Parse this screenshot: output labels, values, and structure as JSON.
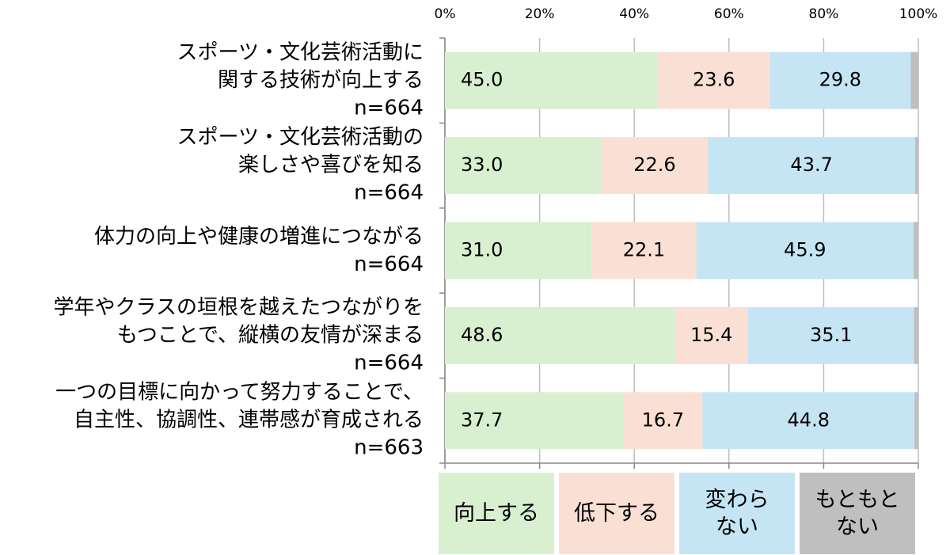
{
  "chart_data": {
    "type": "bar",
    "orientation": "horizontal",
    "stacked": true,
    "categories": [
      "スポーツ・文化芸術活動に\n関する技術が向上する\nn=664",
      "スポーツ・文化芸術活動の\n楽しさや喜びを知る\nn=664",
      "体力の向上や健康の増進につながる\nn=664",
      "学年やクラスの垣根を越えたつながりを\nもつことで、縦横の友情が深まる\nn=664",
      "一つの目標に向かって努力することで、\n自主性、協調性、連帯感が育成される\nn=663"
    ],
    "series": [
      {
        "name": "向上する",
        "color": "#d9f0d0",
        "values": [
          45.0,
          33.0,
          31.0,
          48.6,
          37.7
        ],
        "value_labels": [
          "45.0",
          "33.0",
          "31.0",
          "48.6",
          "37.7"
        ]
      },
      {
        "name": "低下する",
        "color": "#fae0d4",
        "values": [
          23.6,
          22.6,
          22.1,
          15.4,
          16.7
        ]
      },
      {
        "name": "変わら\nない",
        "color": "#c5e5f5",
        "values": [
          29.8,
          43.7,
          45.9,
          35.1,
          44.8
        ]
      },
      {
        "name": "もともと\nない",
        "color": "#bfbfbf",
        "values": [
          1.6,
          0.7,
          1.0,
          0.9,
          0.8
        ]
      }
    ],
    "xlim": [
      0,
      100
    ],
    "xticks": [
      {
        "value": 0,
        "label": "0%"
      },
      {
        "value": 20,
        "label": "20%"
      },
      {
        "value": 40,
        "label": "40%"
      },
      {
        "value": 60,
        "label": "60%"
      },
      {
        "value": 80,
        "label": "80%"
      },
      {
        "value": 100,
        "label": "100%"
      }
    ],
    "grid": true
  }
}
